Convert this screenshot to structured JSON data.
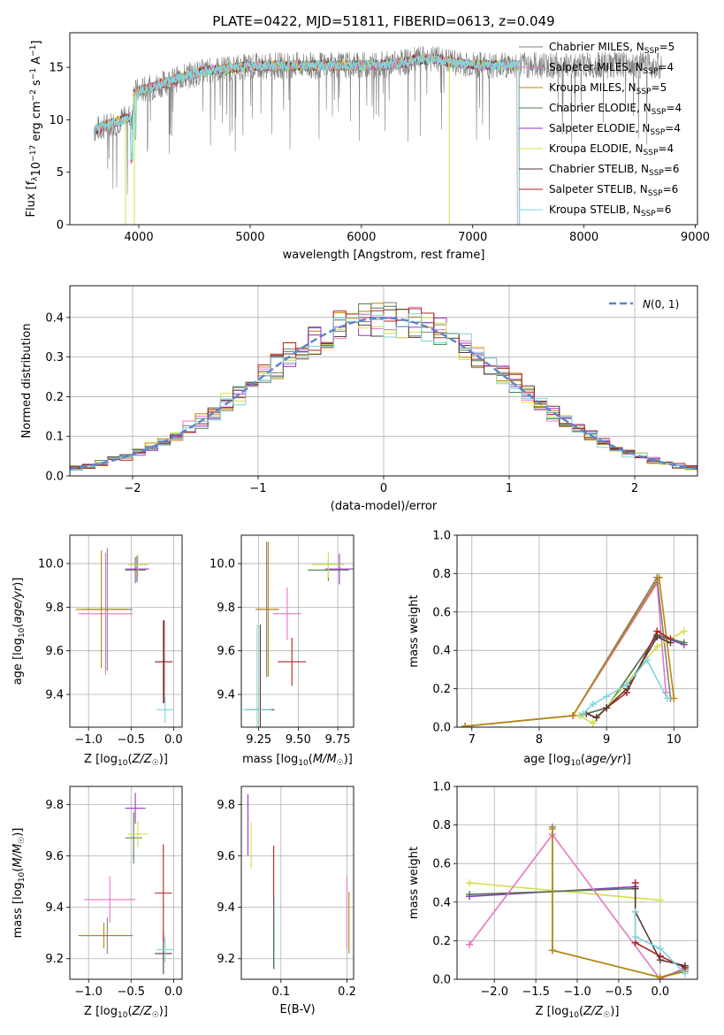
{
  "figure_title": "PLATE=0422, MJD=51811, FIBERID=0613, z=0.049",
  "colors": {
    "series": [
      "#808080",
      "#e377c2",
      "#b8860b",
      "#4d7f4d",
      "#9932cc",
      "#d4e04a",
      "#5a3a3a",
      "#b22222",
      "#7fd6dc"
    ],
    "gaussian": "#5b84d0",
    "grid": "#b0b0b0"
  },
  "chart_data": [
    {
      "id": "spectrum",
      "type": "line",
      "title": "PLATE=0422, MJD=51811, FIBERID=0613, z=0.049",
      "xlabel": "wavelength [Angstrom, rest frame]",
      "ylabel": "Flux [f_λ 10^-17 erg cm^-2 s^-1 A^-1]",
      "xlim": [
        3380,
        9020
      ],
      "ylim": [
        0,
        18.3
      ],
      "xticks": [
        "4000",
        "5000",
        "6000",
        "7000",
        "8000",
        "9000"
      ],
      "yticks": [
        "0",
        "5",
        "10",
        "15"
      ],
      "grid": false,
      "legend_position": "top-right",
      "data_x_range": [
        3600,
        8700
      ],
      "model_range": [
        3600,
        7420
      ],
      "legend": [
        {
          "model": "Chabrier MILES",
          "nssp": "5"
        },
        {
          "model": "Salpeter MILES",
          "nssp": "4"
        },
        {
          "model": "Kroupa MILES",
          "nssp": "5"
        },
        {
          "model": "Chabrier ELODIE",
          "nssp": "4"
        },
        {
          "model": "Salpeter ELODIE",
          "nssp": "4"
        },
        {
          "model": "Kroupa ELODIE",
          "nssp": "4"
        },
        {
          "model": "Chabrier STELIB",
          "nssp": "6"
        },
        {
          "model": "Salpeter STELIB",
          "nssp": "6"
        },
        {
          "model": "Kroupa STELIB",
          "nssp": "6"
        }
      ]
    },
    {
      "id": "residuals",
      "type": "histogram",
      "xlabel": "(data-model)/error",
      "ylabel": "Normed distribution",
      "xlim": [
        -2.5,
        2.5
      ],
      "ylim": [
        0,
        0.48
      ],
      "xticks": [
        "−2",
        "−1",
        "0",
        "1",
        "2"
      ],
      "yticks": [
        "0.0",
        "0.1",
        "0.2",
        "0.3",
        "0.4"
      ],
      "grid": true,
      "legend_position": "top-right",
      "gaussian_label": "(0, 1)",
      "bins": {
        "start": -2.5,
        "width": 0.1,
        "count": 50
      }
    },
    {
      "id": "age-vs-Z",
      "type": "errorbar",
      "xlabel": "Z [log10(Z/Z☉)]",
      "ylabel": "age [log10(age/yr)]",
      "xlim": [
        -1.22,
        0.1
      ],
      "ylim": [
        9.25,
        10.13
      ],
      "xticks": [
        "−1.0",
        "−0.5",
        "0.0"
      ],
      "yticks": [
        "9.4",
        "9.6",
        "9.8",
        "10.0"
      ],
      "grid": true,
      "points": [
        {
          "x": -0.78,
          "y": 9.79,
          "xerr": 0.3,
          "yerr": 0.28,
          "c": 0
        },
        {
          "x": -0.8,
          "y": 9.77,
          "xerr": 0.32,
          "yerr": 0.28,
          "c": 1
        },
        {
          "x": -0.85,
          "y": 9.79,
          "xerr": 0.3,
          "yerr": 0.27,
          "c": 2
        },
        {
          "x": -0.45,
          "y": 9.97,
          "xerr": 0.12,
          "yerr": 0.06,
          "c": 3
        },
        {
          "x": -0.43,
          "y": 9.975,
          "xerr": 0.14,
          "yerr": 0.06,
          "c": 4
        },
        {
          "x": -0.42,
          "y": 9.995,
          "xerr": 0.12,
          "yerr": 0.05,
          "c": 5
        },
        {
          "x": -0.12,
          "y": 9.55,
          "xerr": 0.1,
          "yerr": 0.19,
          "c": 6
        },
        {
          "x": -0.11,
          "y": 9.55,
          "xerr": 0.1,
          "yerr": 0.19,
          "c": 7
        },
        {
          "x": -0.1,
          "y": 9.33,
          "xerr": 0.1,
          "yerr": 0.06,
          "c": 8
        }
      ]
    },
    {
      "id": "age-vs-mass",
      "type": "errorbar",
      "xlabel": "mass [log10(M/M☉)]",
      "ylabel": "",
      "xlim": [
        9.14,
        9.85
      ],
      "ylim": [
        9.25,
        10.13
      ],
      "xticks": [
        "9.25",
        "9.50",
        "9.75"
      ],
      "yticks": [
        "9.4",
        "9.6",
        "9.8",
        "10.0"
      ],
      "grid": true,
      "points": [
        {
          "x": 9.3,
          "y": 9.79,
          "xerr": 0.07,
          "yerr": 0.31,
          "c": 0
        },
        {
          "x": 9.43,
          "y": 9.77,
          "xerr": 0.09,
          "yerr": 0.12,
          "c": 1
        },
        {
          "x": 9.31,
          "y": 9.79,
          "xerr": 0.07,
          "yerr": 0.31,
          "c": 2
        },
        {
          "x": 9.69,
          "y": 9.97,
          "xerr": 0.13,
          "yerr": 0.05,
          "c": 3
        },
        {
          "x": 9.76,
          "y": 9.975,
          "xerr": 0.09,
          "yerr": 0.07,
          "c": 4
        },
        {
          "x": 9.69,
          "y": 9.995,
          "xerr": 0.1,
          "yerr": 0.06,
          "c": 5
        },
        {
          "x": 9.26,
          "y": 9.33,
          "xerr": 0.09,
          "yerr": 0.39,
          "c": 6
        },
        {
          "x": 9.46,
          "y": 9.55,
          "xerr": 0.09,
          "yerr": 0.11,
          "c": 7
        },
        {
          "x": 9.24,
          "y": 9.33,
          "xerr": 0.09,
          "yerr": 0.39,
          "c": 8
        }
      ]
    },
    {
      "id": "weight-vs-age",
      "type": "line",
      "xlabel": "age [log10(age/yr)]",
      "ylabel": "mass weight",
      "xlim": [
        6.78,
        10.35
      ],
      "ylim": [
        0,
        1.0
      ],
      "xticks": [
        "7",
        "8",
        "9",
        "10"
      ],
      "yticks": [
        "0.0",
        "0.2",
        "0.4",
        "0.6",
        "0.8",
        "1.0"
      ],
      "grid": true,
      "series": [
        {
          "c": 1,
          "x": [
            6.9,
            8.5,
            9.75,
            9.88
          ],
          "y": [
            0.005,
            0.06,
            0.75,
            0.18
          ]
        },
        {
          "c": 0,
          "x": [
            6.9,
            8.5,
            9.75,
            9.95
          ],
          "y": [
            0.005,
            0.06,
            0.78,
            0.15
          ]
        },
        {
          "c": 2,
          "x": [
            6.9,
            8.5,
            9.78,
            10.0
          ],
          "y": [
            0.005,
            0.06,
            0.78,
            0.15
          ]
        },
        {
          "c": 4,
          "x": [
            8.6,
            9.0,
            9.75,
            10.15
          ],
          "y": [
            0.06,
            0.1,
            0.48,
            0.43
          ]
        },
        {
          "c": 3,
          "x": [
            8.6,
            9.0,
            9.75,
            10.15
          ],
          "y": [
            0.06,
            0.1,
            0.48,
            0.44
          ]
        },
        {
          "c": 5,
          "x": [
            8.6,
            8.8,
            9.75,
            10.15
          ],
          "y": [
            0.06,
            0.02,
            0.42,
            0.5
          ]
        },
        {
          "c": 7,
          "x": [
            8.7,
            8.85,
            9.0,
            9.3,
            9.75,
            9.95
          ],
          "y": [
            0.07,
            0.05,
            0.1,
            0.18,
            0.5,
            0.46
          ]
        },
        {
          "c": 6,
          "x": [
            8.7,
            8.85,
            9.0,
            9.3,
            9.75,
            9.95
          ],
          "y": [
            0.07,
            0.05,
            0.1,
            0.2,
            0.47,
            0.44
          ]
        },
        {
          "c": 8,
          "x": [
            8.65,
            8.8,
            9.0,
            9.3,
            9.6,
            9.9
          ],
          "y": [
            0.07,
            0.12,
            0.16,
            0.22,
            0.35,
            0.15
          ]
        }
      ]
    },
    {
      "id": "mass-vs-Z",
      "type": "errorbar",
      "xlabel": "Z [log10(Z/Z☉)]",
      "ylabel": "mass [log10(M/M☉)]",
      "xlim": [
        -1.22,
        0.1
      ],
      "ylim": [
        9.12,
        9.87
      ],
      "xticks": [
        "−1.0",
        "−0.5",
        "0.0"
      ],
      "yticks": [
        "9.2",
        "9.4",
        "9.6",
        "9.8"
      ],
      "grid": true,
      "points": [
        {
          "x": -0.78,
          "y": 9.29,
          "xerr": 0.3,
          "yerr": 0.07,
          "c": 0
        },
        {
          "x": -0.75,
          "y": 9.43,
          "xerr": 0.3,
          "yerr": 0.09,
          "c": 1
        },
        {
          "x": -0.82,
          "y": 9.29,
          "xerr": 0.3,
          "yerr": 0.05,
          "c": 2
        },
        {
          "x": -0.47,
          "y": 9.67,
          "xerr": 0.1,
          "yerr": 0.1,
          "c": 3
        },
        {
          "x": -0.45,
          "y": 9.785,
          "xerr": 0.12,
          "yerr": 0.06,
          "c": 4
        },
        {
          "x": -0.42,
          "y": 9.685,
          "xerr": 0.12,
          "yerr": 0.05,
          "c": 5
        },
        {
          "x": -0.12,
          "y": 9.22,
          "xerr": 0.1,
          "yerr": 0.08,
          "c": 6
        },
        {
          "x": -0.12,
          "y": 9.455,
          "xerr": 0.1,
          "yerr": 0.19,
          "c": 7
        },
        {
          "x": -0.1,
          "y": 9.235,
          "xerr": 0.1,
          "yerr": 0.05,
          "c": 8
        }
      ]
    },
    {
      "id": "mass-vs-EBV",
      "type": "errorbar",
      "xlabel": "E(B-V)",
      "ylabel": "",
      "xlim": [
        0.04,
        0.21
      ],
      "ylim": [
        9.12,
        9.87
      ],
      "xticks": [
        "0.1",
        "0.2"
      ],
      "yticks": [
        "9.2",
        "9.4",
        "9.6",
        "9.8"
      ],
      "grid": true,
      "points": [
        {
          "x": 0.05,
          "y": 9.72,
          "xerr": 0,
          "yerr": 0.12,
          "c": 4
        },
        {
          "x": 0.055,
          "y": 9.64,
          "xerr": 0,
          "yerr": 0.09,
          "c": 5
        },
        {
          "x": 0.089,
          "y": 9.3,
          "xerr": 0,
          "yerr": 0.14,
          "c": 6
        },
        {
          "x": 0.089,
          "y": 9.48,
          "xerr": 0,
          "yerr": 0.16,
          "c": 7
        },
        {
          "x": 0.09,
          "y": 9.3,
          "xerr": 0,
          "yerr": 0.14,
          "c": 8
        },
        {
          "x": 0.2,
          "y": 9.38,
          "xerr": 0,
          "yerr": 0.14,
          "c": 1
        },
        {
          "x": 0.203,
          "y": 9.34,
          "xerr": 0,
          "yerr": 0.12,
          "c": 2
        }
      ]
    },
    {
      "id": "weight-vs-Z",
      "type": "line",
      "xlabel": "Z [log10(Z/Z☉)]",
      "ylabel": "mass weight",
      "xlim": [
        -2.45,
        0.45
      ],
      "ylim": [
        0,
        1.0
      ],
      "xticks": [
        "−2.0",
        "−1.5",
        "−1.0",
        "−0.5",
        "0.0"
      ],
      "yticks": [
        "0.0",
        "0.2",
        "0.4",
        "0.6",
        "0.8",
        "1.0"
      ],
      "grid": true,
      "series": [
        {
          "c": 5,
          "x": [
            -2.3,
            0.0
          ],
          "y": [
            0.5,
            0.41
          ]
        },
        {
          "c": 4,
          "x": [
            -2.3,
            -0.3
          ],
          "y": [
            0.43,
            0.48
          ]
        },
        {
          "c": 3,
          "x": [
            -2.3,
            -0.3
          ],
          "y": [
            0.44,
            0.47
          ]
        },
        {
          "c": 1,
          "x": [
            -2.3,
            -1.3,
            0.0,
            0.3
          ],
          "y": [
            0.18,
            0.75,
            0.0,
            0.06
          ]
        },
        {
          "c": 0,
          "x": [
            -1.3,
            -1.3,
            0.0,
            0.3
          ],
          "y": [
            0.79,
            0.15,
            0.01,
            0.05
          ]
        },
        {
          "c": 2,
          "x": [
            -1.3,
            -1.3,
            0.0,
            0.3
          ],
          "y": [
            0.78,
            0.15,
            0.01,
            0.04
          ]
        },
        {
          "c": 7,
          "x": [
            -0.3,
            -0.3,
            0.0,
            0.3
          ],
          "y": [
            0.5,
            0.19,
            0.12,
            0.06
          ]
        },
        {
          "c": 6,
          "x": [
            -0.3,
            -0.3,
            0.0,
            0.3
          ],
          "y": [
            0.47,
            0.35,
            0.1,
            0.07
          ]
        },
        {
          "c": 8,
          "x": [
            -0.3,
            -0.3,
            0.0,
            0.3
          ],
          "y": [
            0.35,
            0.22,
            0.16,
            0.03
          ]
        }
      ]
    }
  ]
}
